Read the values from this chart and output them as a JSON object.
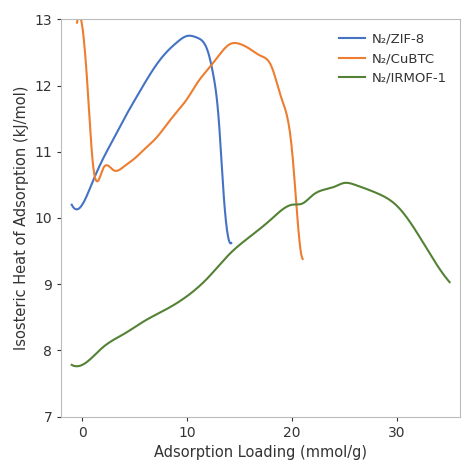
{
  "xlabel": "Adsorption Loading (mmol/g)",
  "ylabel": "Isosteric Heat of Adsorption (kJ/mol)",
  "xlim": [
    -2,
    36
  ],
  "ylim": [
    7,
    13
  ],
  "yticks": [
    7,
    8,
    9,
    10,
    11,
    12,
    13
  ],
  "xticks": [
    0,
    10,
    20,
    30
  ],
  "zif8_x": [
    -1,
    0,
    1,
    2,
    3,
    4,
    5,
    6,
    7,
    8,
    9,
    10,
    11,
    12,
    12.5,
    13,
    13.5,
    14,
    14.2
  ],
  "zif8_y": [
    10.2,
    10.2,
    10.55,
    10.9,
    11.2,
    11.5,
    11.78,
    12.05,
    12.3,
    12.5,
    12.65,
    12.75,
    12.72,
    12.5,
    12.15,
    11.5,
    10.3,
    9.65,
    9.62
  ],
  "cubtc_x": [
    -0.5,
    0,
    0.5,
    1,
    2,
    3,
    4,
    5,
    6,
    7,
    8,
    9,
    10,
    11,
    12,
    13,
    14,
    15,
    16,
    17,
    18,
    19,
    20,
    20.5,
    21
  ],
  "cubtc_y": [
    12.95,
    12.9,
    12.0,
    10.85,
    10.75,
    10.72,
    10.78,
    10.9,
    11.05,
    11.2,
    11.4,
    11.6,
    11.8,
    12.05,
    12.25,
    12.45,
    12.62,
    12.63,
    12.55,
    12.45,
    12.3,
    11.8,
    11.0,
    10.0,
    9.38
  ],
  "irmof_x": [
    -1,
    0,
    2,
    4,
    6,
    8,
    10,
    12,
    14,
    16,
    18,
    20,
    21,
    22,
    24,
    25,
    26,
    28,
    30,
    32,
    35
  ],
  "irmof_y": [
    7.78,
    7.78,
    8.05,
    8.25,
    8.45,
    8.62,
    8.82,
    9.1,
    9.45,
    9.72,
    9.98,
    10.2,
    10.22,
    10.35,
    10.47,
    10.53,
    10.5,
    10.38,
    10.18,
    9.75,
    9.03
  ],
  "color_zif8": "#4472C4",
  "color_cubtc": "#ED7D31",
  "color_irmof": "#548235",
  "legend_labels": [
    "N₂/ZIF-8",
    "N₂/CuBTC",
    "N₂/IRMOF-1"
  ],
  "legend_colors": [
    "#4472C4",
    "#ED7D31",
    "#548235"
  ]
}
